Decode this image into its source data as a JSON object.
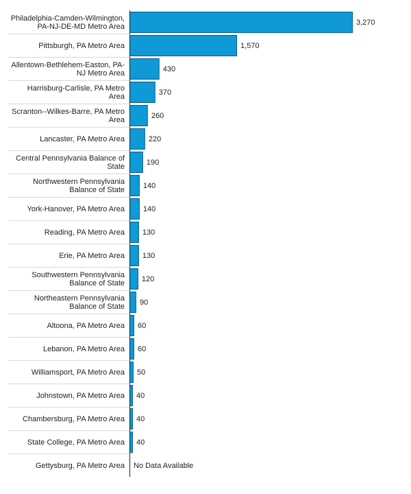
{
  "chart_data": {
    "type": "bar",
    "orientation": "horizontal",
    "title": "",
    "xlabel": "",
    "ylabel": "",
    "xlim": [
      0,
      3270
    ],
    "grid": false,
    "categories": [
      "Philadelphia-Camden-Wilmington, PA-NJ-DE-MD Metro Area",
      "Pittsburgh, PA Metro Area",
      "Allentown-Bethlehem-Easton, PA-NJ Metro Area",
      "Harrisburg-Carlisle, PA Metro Area",
      "Scranton--Wilkes-Barre, PA Metro Area",
      "Lancaster, PA Metro Area",
      "Central Pennsylvania Balance of State",
      "Northwestern Pennsylvania Balance of State",
      "York-Hanover, PA Metro Area",
      "Reading, PA Metro Area",
      "Erie, PA Metro Area",
      "Southwestern Pennsylvania Balance of State",
      "Northeastern Pennsylvania Balance of State",
      "Altoona, PA Metro Area",
      "Lebanon, PA Metro Area",
      "Williamsport, PA Metro Area",
      "Johnstown, PA Metro Area",
      "Chambersburg, PA Metro Area",
      "State College, PA Metro Area",
      "Gettysburg, PA Metro Area"
    ],
    "label_lines": [
      [
        "Philadelphia-Camden-Wilmington,",
        "PA-NJ-DE-MD Metro Area"
      ],
      [
        "Pittsburgh, PA Metro Area"
      ],
      [
        "Allentown-Bethlehem-Easton, PA-",
        "NJ Metro Area"
      ],
      [
        "Harrisburg-Carlisle, PA Metro",
        "Area"
      ],
      [
        "Scranton--Wilkes-Barre, PA Metro",
        "Area"
      ],
      [
        "Lancaster, PA Metro Area"
      ],
      [
        "Central Pennsylvania Balance of",
        "State"
      ],
      [
        "Northwestern Pennsylvania",
        "Balance of State"
      ],
      [
        "York-Hanover, PA Metro Area"
      ],
      [
        "Reading, PA Metro Area"
      ],
      [
        "Erie, PA Metro Area"
      ],
      [
        "Southwestern Pennsylvania",
        "Balance of State"
      ],
      [
        "Northeastern Pennsylvania",
        "Balance of State"
      ],
      [
        "Altoona, PA Metro Area"
      ],
      [
        "Lebanon, PA Metro Area"
      ],
      [
        "Williamsport, PA Metro Area"
      ],
      [
        "Johnstown, PA Metro Area"
      ],
      [
        "Chambersburg, PA Metro Area"
      ],
      [
        "State College, PA Metro Area"
      ],
      [
        "Gettysburg, PA Metro Area"
      ]
    ],
    "values": [
      3270,
      1570,
      430,
      370,
      260,
      220,
      190,
      140,
      140,
      130,
      130,
      120,
      90,
      60,
      60,
      50,
      40,
      40,
      40,
      null
    ],
    "value_labels": [
      "3,270",
      "1,570",
      "430",
      "370",
      "260",
      "220",
      "190",
      "140",
      "140",
      "130",
      "130",
      "120",
      "90",
      "60",
      "60",
      "50",
      "40",
      "40",
      "40",
      "No Data Available"
    ],
    "colors": {
      "bar": "#0f99d6",
      "bar_border": "#0a5f8a",
      "separator": "#d8d8d8",
      "axis": "#222222",
      "text": "#222222"
    }
  }
}
